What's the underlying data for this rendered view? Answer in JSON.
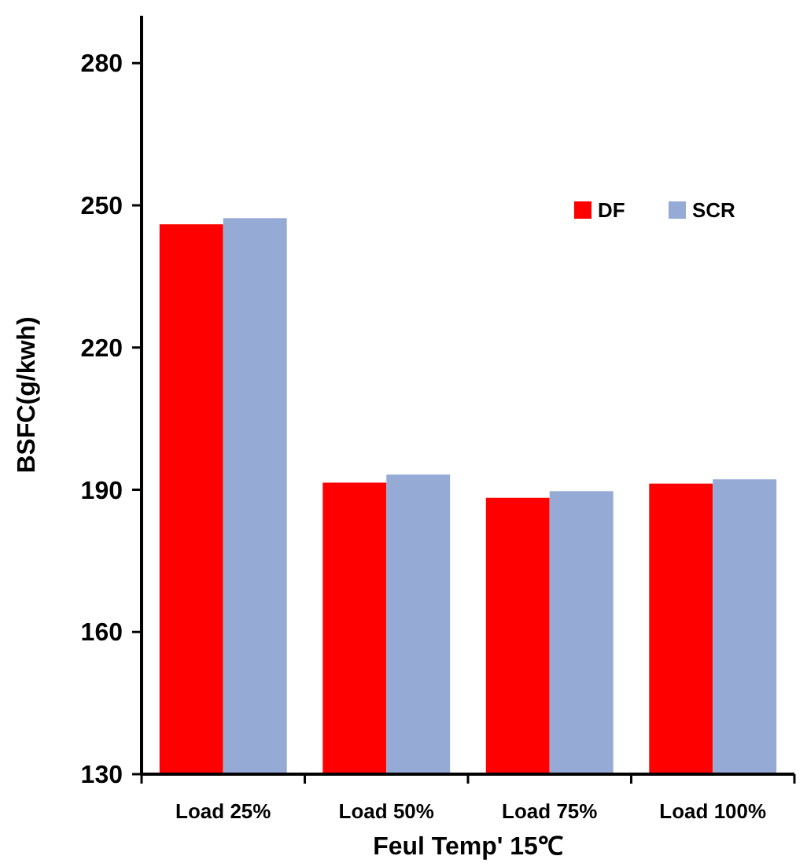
{
  "chart_data": {
    "type": "bar",
    "xlabel": "Feul Temp' 15℃",
    "ylabel": "BSFC(g/kwh)",
    "categories": [
      "Load 25%",
      "Load 50%",
      "Load 75%",
      "Load 100%"
    ],
    "series": [
      {
        "name": "DF",
        "color": "#ff0000",
        "values": [
          246,
          191.5,
          188.3,
          191.3
        ]
      },
      {
        "name": "SCR",
        "color": "#95abd5",
        "values": [
          247.3,
          193.2,
          189.7,
          192.2
        ]
      }
    ],
    "ylim": [
      130,
      290
    ],
    "yticks": [
      130,
      160,
      190,
      220,
      250,
      280
    ],
    "grid": false,
    "legend": "top right"
  }
}
